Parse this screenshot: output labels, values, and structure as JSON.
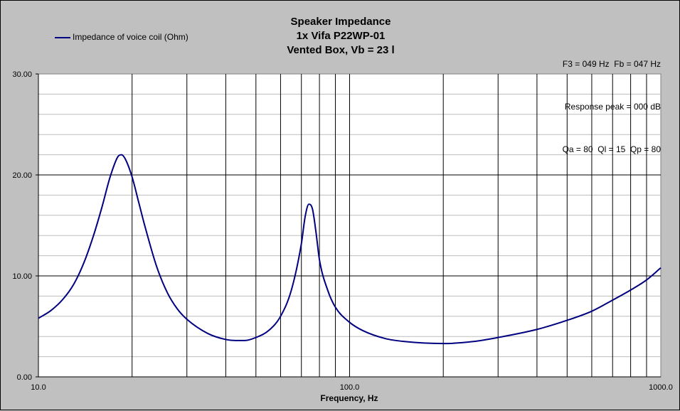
{
  "chart_data": {
    "type": "line",
    "title": [
      "Speaker Impedance",
      "1x Vifa P22WP-01",
      "Vented Box, Vb = 23 l"
    ],
    "info": [
      "F3 = 049 Hz  Fb = 047 Hz",
      "Response peak = 000 dB",
      "Qa = 80  Ql = 15  Qp = 80"
    ],
    "xlabel": "Frequency, Hz",
    "ylabel": "",
    "xscale": "log",
    "xlim": [
      10,
      1000
    ],
    "ylim": [
      0,
      30
    ],
    "grid": true,
    "legend_position": "top-left",
    "x_tick_labels": [
      "10.0",
      "100.0",
      "1000.0"
    ],
    "y_tick_labels": [
      "0.00",
      "10.00",
      "20.00",
      "30.00"
    ],
    "series": [
      {
        "name": "Impedance of voice coil (Ohm)",
        "color": "#000080",
        "x": [
          10,
          11,
          12,
          13,
          14,
          15,
          16,
          17,
          18,
          18.5,
          19,
          20,
          21,
          22,
          24,
          26,
          28,
          30,
          35,
          40,
          43,
          46,
          50,
          55,
          60,
          65,
          70,
          72,
          74,
          76,
          78,
          80,
          85,
          90,
          100,
          110,
          130,
          150,
          200,
          250,
          300,
          400,
          500,
          600,
          700,
          800,
          900,
          1000
        ],
        "y": [
          5.8,
          6.6,
          7.7,
          9.2,
          11.3,
          13.9,
          16.8,
          19.8,
          21.8,
          22.0,
          21.6,
          19.8,
          17.3,
          14.9,
          10.9,
          8.3,
          6.7,
          5.7,
          4.3,
          3.7,
          3.6,
          3.6,
          3.9,
          4.6,
          6.0,
          8.6,
          13.2,
          15.9,
          17.1,
          16.6,
          14.3,
          11.6,
          8.6,
          6.9,
          5.4,
          4.6,
          3.8,
          3.5,
          3.3,
          3.5,
          3.9,
          4.7,
          5.6,
          6.5,
          7.6,
          8.6,
          9.6,
          10.8
        ]
      }
    ]
  }
}
